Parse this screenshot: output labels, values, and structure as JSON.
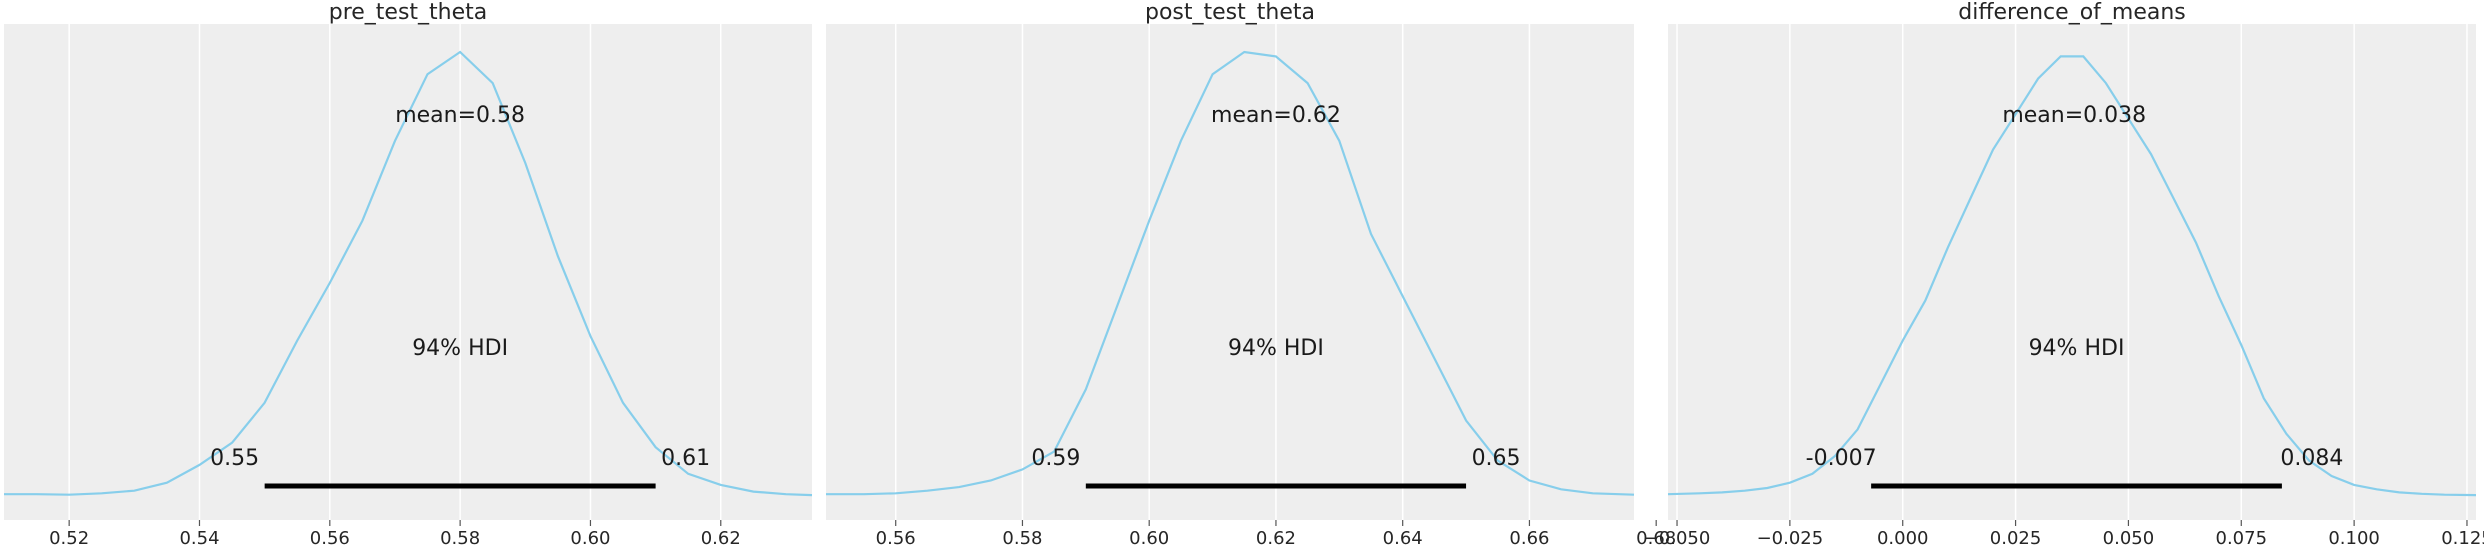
{
  "chart_data": [
    {
      "type": "area",
      "title": "pre_test_theta",
      "xlim": [
        0.51,
        0.634
      ],
      "xticks": [
        0.52,
        0.54,
        0.56,
        0.58,
        0.6,
        0.62
      ],
      "xtick_labels": [
        "0.52",
        "0.54",
        "0.56",
        "0.58",
        "0.60",
        "0.62"
      ],
      "mean_label": "mean=0.58",
      "mean": 0.58,
      "hdi_label": "94% HDI",
      "hdi": [
        0.55,
        0.61
      ],
      "hdi_labels": [
        "0.55",
        "0.61"
      ],
      "density": {
        "x": [
          0.51,
          0.515,
          0.52,
          0.525,
          0.53,
          0.535,
          0.54,
          0.545,
          0.55,
          0.555,
          0.56,
          0.565,
          0.57,
          0.575,
          0.58,
          0.585,
          0.59,
          0.595,
          0.6,
          0.605,
          0.61,
          0.615,
          0.62,
          0.625,
          0.63,
          0.634
        ],
        "y": [
          0.004,
          0.004,
          0.003,
          0.006,
          0.012,
          0.03,
          0.07,
          0.12,
          0.21,
          0.35,
          0.48,
          0.62,
          0.8,
          0.95,
          1.0,
          0.93,
          0.75,
          0.54,
          0.36,
          0.21,
          0.11,
          0.05,
          0.025,
          0.01,
          0.004,
          0.002
        ]
      }
    },
    {
      "type": "area",
      "title": "post_test_theta",
      "xlim": [
        0.549,
        0.6765
      ],
      "xticks": [
        0.56,
        0.58,
        0.6,
        0.62,
        0.64,
        0.66,
        0.68
      ],
      "xtick_labels": [
        "0.56",
        "0.58",
        "0.60",
        "0.62",
        "0.64",
        "0.66",
        "0.68"
      ],
      "mean_label": "mean=0.62",
      "mean": 0.62,
      "hdi_label": "94% HDI",
      "hdi": [
        0.59,
        0.65
      ],
      "hdi_labels": [
        "0.59",
        "0.65"
      ],
      "density": {
        "x": [
          0.549,
          0.555,
          0.56,
          0.565,
          0.57,
          0.575,
          0.58,
          0.585,
          0.59,
          0.595,
          0.6,
          0.605,
          0.61,
          0.615,
          0.62,
          0.625,
          0.63,
          0.635,
          0.64,
          0.645,
          0.65,
          0.655,
          0.66,
          0.665,
          0.67,
          0.6765
        ],
        "y": [
          0.004,
          0.004,
          0.006,
          0.012,
          0.02,
          0.035,
          0.06,
          0.1,
          0.24,
          0.43,
          0.62,
          0.8,
          0.95,
          1.0,
          0.99,
          0.93,
          0.8,
          0.59,
          0.45,
          0.31,
          0.17,
          0.08,
          0.035,
          0.015,
          0.006,
          0.003
        ]
      }
    },
    {
      "type": "area",
      "title": "difference_of_means",
      "xlim": [
        -0.052,
        0.127
      ],
      "xticks": [
        -0.05,
        -0.025,
        0.0,
        0.025,
        0.05,
        0.075,
        0.1,
        0.125
      ],
      "xtick_labels": [
        "−0.050",
        "−0.025",
        "0.000",
        "0.025",
        "0.050",
        "0.075",
        "0.100",
        "0.125"
      ],
      "mean_label": "mean=0.038",
      "mean": 0.038,
      "hdi_label": "94% HDI",
      "hdi": [
        -0.007,
        0.084
      ],
      "hdi_labels": [
        "-0.007",
        "0.084"
      ],
      "density": {
        "x": [
          -0.052,
          -0.045,
          -0.04,
          -0.035,
          -0.03,
          -0.025,
          -0.02,
          -0.015,
          -0.01,
          -0.005,
          0.0,
          0.005,
          0.01,
          0.015,
          0.02,
          0.025,
          0.03,
          0.035,
          0.04,
          0.045,
          0.05,
          0.055,
          0.06,
          0.065,
          0.07,
          0.075,
          0.08,
          0.085,
          0.09,
          0.095,
          0.1,
          0.105,
          0.11,
          0.115,
          0.12,
          0.127
        ],
        "y": [
          0.004,
          0.006,
          0.008,
          0.012,
          0.018,
          0.03,
          0.05,
          0.09,
          0.15,
          0.25,
          0.35,
          0.44,
          0.56,
          0.67,
          0.78,
          0.86,
          0.94,
          0.99,
          0.99,
          0.93,
          0.85,
          0.77,
          0.67,
          0.57,
          0.45,
          0.34,
          0.22,
          0.14,
          0.08,
          0.045,
          0.025,
          0.015,
          0.008,
          0.005,
          0.003,
          0.002
        ]
      }
    }
  ]
}
